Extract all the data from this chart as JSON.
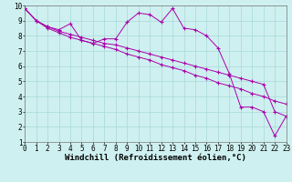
{
  "xlabel": "Windchill (Refroidissement éolien,°C)",
  "xlim": [
    0,
    23
  ],
  "ylim": [
    1,
    10
  ],
  "xticks": [
    0,
    1,
    2,
    3,
    4,
    5,
    6,
    7,
    8,
    9,
    10,
    11,
    12,
    13,
    14,
    15,
    16,
    17,
    18,
    19,
    20,
    21,
    22,
    23
  ],
  "yticks": [
    1,
    2,
    3,
    4,
    5,
    6,
    7,
    8,
    9,
    10
  ],
  "bg_color": "#cff0f0",
  "line_color": "#aa00aa",
  "line1_x": [
    0,
    1,
    2,
    3,
    4,
    5,
    6,
    7,
    8,
    9,
    10,
    11,
    12,
    13,
    14,
    15,
    16,
    17,
    18,
    19,
    20,
    21,
    22,
    23
  ],
  "line1_y": [
    9.8,
    9.0,
    8.6,
    8.4,
    8.8,
    7.7,
    7.5,
    7.8,
    7.8,
    8.9,
    9.5,
    9.4,
    8.9,
    9.8,
    8.5,
    8.4,
    8.0,
    7.2,
    5.5,
    3.3,
    3.3,
    3.0,
    1.4,
    2.7
  ],
  "line2_x": [
    0,
    1,
    2,
    3,
    4,
    5,
    6,
    7,
    8,
    9,
    10,
    11,
    12,
    13,
    14,
    15,
    16,
    17,
    18,
    19,
    20,
    21,
    22,
    23
  ],
  "line2_y": [
    9.8,
    9.0,
    8.6,
    8.3,
    8.1,
    7.9,
    7.7,
    7.5,
    7.4,
    7.2,
    7.0,
    6.8,
    6.6,
    6.4,
    6.2,
    6.0,
    5.8,
    5.6,
    5.4,
    5.2,
    5.0,
    4.8,
    3.0,
    2.7
  ],
  "line3_x": [
    0,
    1,
    2,
    3,
    4,
    5,
    6,
    7,
    8,
    9,
    10,
    11,
    12,
    13,
    14,
    15,
    16,
    17,
    18,
    19,
    20,
    21,
    22,
    23
  ],
  "line3_y": [
    9.8,
    9.0,
    8.5,
    8.2,
    7.9,
    7.7,
    7.5,
    7.3,
    7.1,
    6.8,
    6.6,
    6.4,
    6.1,
    5.9,
    5.7,
    5.4,
    5.2,
    4.9,
    4.7,
    4.5,
    4.2,
    4.0,
    3.7,
    3.5
  ],
  "marker": "+",
  "markersize": 3,
  "linewidth": 0.7,
  "xlabel_fontsize": 6.5,
  "tick_fontsize": 5.5,
  "grid_color": "#a8d8d8"
}
